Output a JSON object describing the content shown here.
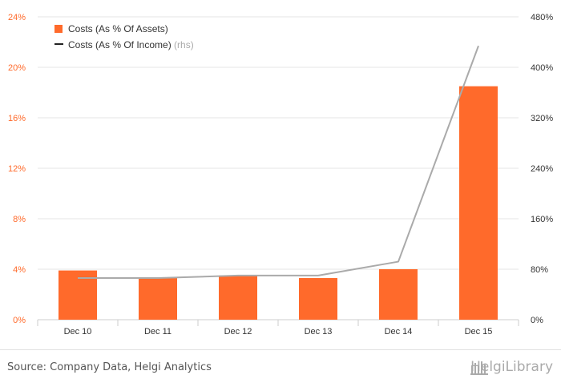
{
  "chart_data": {
    "type": "bar",
    "categories": [
      "Dec 10",
      "Dec 11",
      "Dec 12",
      "Dec 13",
      "Dec 14",
      "Dec 15"
    ],
    "series": [
      {
        "name": "Costs (As % Of Assets)",
        "type": "bar",
        "axis": "left",
        "color": "#ff6a2b",
        "values": [
          3.9,
          3.3,
          3.5,
          3.3,
          4.0,
          18.5
        ]
      },
      {
        "name": "Costs (As % Of Income)",
        "suffix": "(rhs)",
        "type": "line",
        "axis": "right",
        "color": "#aaaaaa",
        "values": [
          66,
          66,
          70,
          70,
          92,
          434
        ]
      }
    ],
    "y_left": {
      "range": [
        0,
        24
      ],
      "ticks": [
        "0%",
        "4%",
        "8%",
        "12%",
        "16%",
        "20%",
        "24%"
      ],
      "color": "#ff6a2b"
    },
    "y_right": {
      "range": [
        0,
        480
      ],
      "ticks": [
        "0%",
        "80%",
        "160%",
        "240%",
        "320%",
        "400%",
        "480%"
      ]
    },
    "grid": true,
    "legend_position": "top-left"
  },
  "footer": {
    "source": "Source: Company Data, Helgi Analytics",
    "brand": "HelgiLibrary",
    "brand_icon": "library-icon"
  }
}
